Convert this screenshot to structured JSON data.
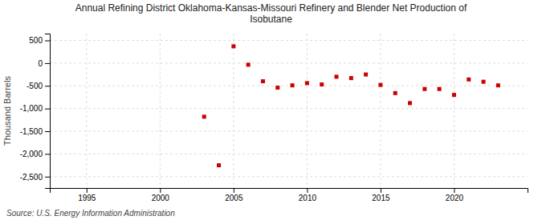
{
  "chart_data": {
    "type": "scatter",
    "title": "Annual Refining District Oklahoma-Kansas-Missouri Refinery and Blender Net Production of\nIsobutane",
    "y_label": "Thousand Barrels",
    "annotations": [
      "Source: U.S. Energy Information Administration"
    ],
    "x": [
      2003,
      2004,
      2005,
      2006,
      2007,
      2008,
      2009,
      2010,
      2011,
      2012,
      2013,
      2014,
      2015,
      2016,
      2017,
      2018,
      2019,
      2020,
      2021,
      2022,
      2023
    ],
    "values": [
      -1180,
      -2250,
      370,
      -35,
      -400,
      -540,
      -490,
      -440,
      -470,
      -300,
      -330,
      -250,
      -480,
      -660,
      -880,
      -570,
      -570,
      -700,
      -360,
      -410,
      -490
    ],
    "color": "#cc0000",
    "marker": "square",
    "xlim": [
      1992.5,
      2025
    ],
    "xticks": [
      1995,
      2000,
      2005,
      2010,
      2015,
      2020
    ],
    "ylim": [
      -2750,
      650
    ],
    "yticks": [
      {
        "value": -2500,
        "label": "-2,500"
      },
      {
        "value": -2000,
        "label": "-2,000"
      },
      {
        "value": -1500,
        "label": "-1,500"
      },
      {
        "value": -1000,
        "label": "-1,000"
      },
      -500,
      0,
      500
    ],
    "grid": true
  }
}
